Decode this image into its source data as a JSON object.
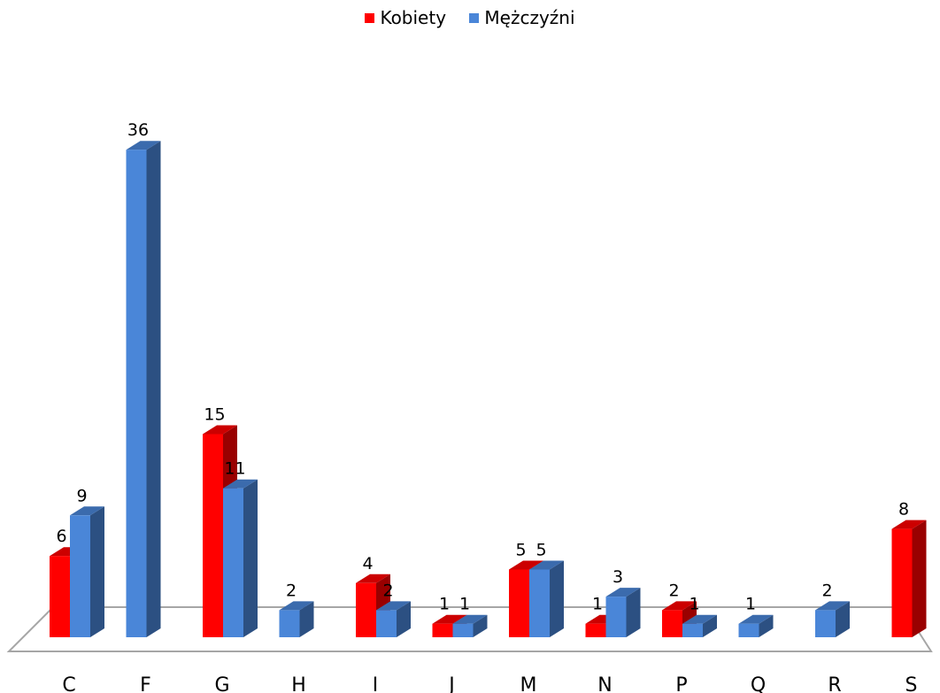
{
  "chart_data": {
    "type": "bar",
    "categories": [
      "C",
      "F",
      "G",
      "H",
      "I",
      "J",
      "M",
      "N",
      "P",
      "Q",
      "R",
      "S"
    ],
    "series": [
      {
        "name": "Kobiety",
        "color": "#ff0000",
        "values": [
          6,
          null,
          15,
          null,
          4,
          1,
          5,
          1,
          2,
          null,
          null,
          8
        ]
      },
      {
        "name": "Mężczyźni",
        "color": "#4a86d8",
        "values": [
          9,
          36,
          11,
          2,
          2,
          1,
          5,
          3,
          1,
          1,
          2,
          null
        ]
      }
    ],
    "title": "",
    "xlabel": "",
    "ylabel": "",
    "legend_position": "top-center",
    "grid": false,
    "style": "3d-column"
  }
}
